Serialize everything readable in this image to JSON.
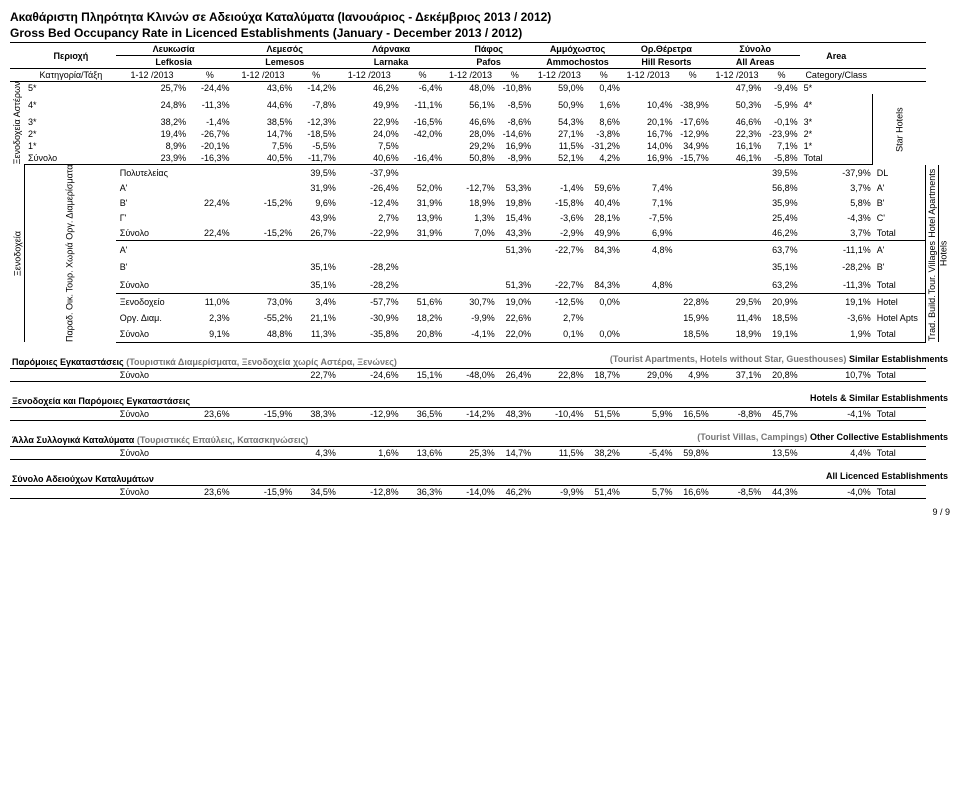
{
  "titleGr": "Ακαθάριστη Πληρότητα Κλινών σε Αδειούχα Καταλύματα (Ιανουάριος - Δεκέμβριος 2013 / 2012)",
  "titleEn": "Gross Bed Occupancy Rate in Licenced Establishments (January - December 2013 / 2012)",
  "regionGr": "Περιοχή",
  "areaEn": "Area",
  "cols": [
    {
      "gr": "Λευκωσία",
      "en": "Lefkosia"
    },
    {
      "gr": "Λεμεσός",
      "en": "Lemesos"
    },
    {
      "gr": "Λάρνακα",
      "en": "Larnaka"
    },
    {
      "gr": "Πάφος",
      "en": "Pafos"
    },
    {
      "gr": "Αμμόχωστος",
      "en": "Ammochostos"
    },
    {
      "gr": "Ορ.Θέρετρα",
      "en": "Hill Resorts"
    },
    {
      "gr": "Σύνολο",
      "en": "All Areas"
    }
  ],
  "catGr": "Κατηγορία/Τάξη",
  "catEn": "Category/Class",
  "p": "1-12 /2013",
  "pct": "%",
  "vXen": "Ξενοδοχεία",
  "vStar": "Ξενοδοχεία Αστέρων",
  "vDiam": "Οργ. Διαμερίσματα",
  "vTour": "Τουρ. Χωριά",
  "vParad": "Παραδ. Οικ.",
  "vStarR": "Star Hotels",
  "vAptR": "Hotel Apartments",
  "vHotelsR": "Hotels",
  "vVillR": "Tour. Villages",
  "vTradR": "Trad. Build.",
  "rows5": [
    "5*",
    "25,7%",
    "-24,4%",
    "43,6%",
    "-14,2%",
    "46,2%",
    "-6,4%",
    "48,0%",
    "-10,8%",
    "59,0%",
    "0,4%",
    "",
    "",
    "47,9%",
    "-9,4%",
    "5*"
  ],
  "rows4": [
    "4*",
    "24,8%",
    "-11,3%",
    "44,6%",
    "-7,8%",
    "49,9%",
    "-11,1%",
    "56,1%",
    "-8,5%",
    "50,9%",
    "1,6%",
    "10,4%",
    "-38,9%",
    "50,3%",
    "-5,9%",
    "4*"
  ],
  "rows3": [
    "3*",
    "38,2%",
    "-1,4%",
    "38,5%",
    "-12,3%",
    "22,9%",
    "-16,5%",
    "46,6%",
    "-8,6%",
    "54,3%",
    "8,6%",
    "20,1%",
    "-17,6%",
    "46,6%",
    "-0,1%",
    "3*"
  ],
  "rows2": [
    "2*",
    "19,4%",
    "-26,7%",
    "14,7%",
    "-18,5%",
    "24,0%",
    "-42,0%",
    "28,0%",
    "-14,6%",
    "27,1%",
    "-3,8%",
    "16,7%",
    "-12,9%",
    "22,3%",
    "-23,9%",
    "2*"
  ],
  "rows1": [
    "1*",
    "8,9%",
    "-20,1%",
    "7,5%",
    "-5,5%",
    "7,5%",
    "",
    "29,2%",
    "16,9%",
    "11,5%",
    "-31,2%",
    "14,0%",
    "34,9%",
    "16,1%",
    "7,1%",
    "1*"
  ],
  "rowsS": [
    "Σύνολο",
    "23,9%",
    "-16,3%",
    "40,5%",
    "-11,7%",
    "40,6%",
    "-16,4%",
    "50,8%",
    "-8,9%",
    "52,1%",
    "4,2%",
    "16,9%",
    "-15,7%",
    "46,1%",
    "-5,8%",
    "Total"
  ],
  "rowDL": [
    "Πολυτελείας",
    "",
    "",
    "39,5%",
    "-37,9%",
    "",
    "",
    "",
    "",
    "",
    "",
    "",
    "",
    "39,5%",
    "-37,9%",
    "DL"
  ],
  "rowA": [
    "Α'",
    "",
    "",
    "31,9%",
    "-26,4%",
    "52,0%",
    "-12,7%",
    "53,3%",
    "-1,4%",
    "59,6%",
    "7,4%",
    "",
    "",
    "56,8%",
    "3,7%",
    "A'"
  ],
  "rowB": [
    "Β'",
    "22,4%",
    "-15,2%",
    "9,6%",
    "-12,4%",
    "31,9%",
    "18,9%",
    "19,8%",
    "-15,8%",
    "40,4%",
    "7,1%",
    "",
    "",
    "35,9%",
    "5,8%",
    "B'"
  ],
  "rowG": [
    "Γ'",
    "",
    "",
    "43,9%",
    "2,7%",
    "13,9%",
    "1,3%",
    "15,4%",
    "-3,6%",
    "28,1%",
    "-7,5%",
    "",
    "",
    "25,4%",
    "-4,3%",
    "C'"
  ],
  "rowAS": [
    "Σύνολο",
    "22,4%",
    "-15,2%",
    "26,7%",
    "-22,9%",
    "31,9%",
    "7,0%",
    "43,3%",
    "-2,9%",
    "49,9%",
    "6,9%",
    "",
    "",
    "46,2%",
    "3,7%",
    "Total"
  ],
  "rowVA": [
    "Α'",
    "",
    "",
    "",
    "",
    "",
    "",
    "51,3%",
    "-22,7%",
    "84,3%",
    "4,8%",
    "",
    "",
    "63,7%",
    "-11,1%",
    "A'"
  ],
  "rowVB": [
    "Β'",
    "",
    "",
    "35,1%",
    "-28,2%",
    "",
    "",
    "",
    "",
    "",
    "",
    "",
    "",
    "35,1%",
    "-28,2%",
    "B'"
  ],
  "rowVS": [
    "Σύνολο",
    "",
    "",
    "35,1%",
    "-28,2%",
    "",
    "",
    "51,3%",
    "-22,7%",
    "84,3%",
    "4,8%",
    "",
    "",
    "63,2%",
    "-11,3%",
    "Total"
  ],
  "rowTX": [
    "Ξενοδοχείο",
    "11,0%",
    "73,0%",
    "3,4%",
    "-57,7%",
    "51,6%",
    "30,7%",
    "19,0%",
    "-12,5%",
    "0,0%",
    "",
    "22,8%",
    "29,5%",
    "20,9%",
    "19,1%",
    "Hotel"
  ],
  "rowTD": [
    "Οργ. Διαμ.",
    "2,3%",
    "-55,2%",
    "21,1%",
    "-30,9%",
    "18,2%",
    "-9,9%",
    "22,6%",
    "2,7%",
    "",
    "",
    "15,9%",
    "11,4%",
    "18,5%",
    "-3,6%",
    "Hotel Apts"
  ],
  "rowTS": [
    "Σύνολο",
    "9,1%",
    "48,8%",
    "11,3%",
    "-35,8%",
    "20,8%",
    "-4,1%",
    "22,0%",
    "0,1%",
    "0,0%",
    "",
    "18,5%",
    "18,9%",
    "19,1%",
    "1,9%",
    "Total"
  ],
  "simGr": "Παρόμοιες Εγκαταστάσεις",
  "simSub": "(Τουριστικά Διαμερίσματα, Ξενοδοχεία χωρίς Αστέρα, Ξενώνες)",
  "simEn": "(Tourist Apartments, Hotels without Star, Guesthouses)",
  "simEnB": "Similar Establishments",
  "rowSim": [
    "Σύνολο",
    "",
    "",
    "22,7%",
    "-24,6%",
    "15,1%",
    "-48,0%",
    "26,4%",
    "22,8%",
    "18,7%",
    "29,0%",
    "4,9%",
    "37,1%",
    "20,8%",
    "10,7%",
    "Total"
  ],
  "hseGr": "Ξενοδοχεία και Παρόμοιες Εγκαταστάσεις",
  "hseEn": "Hotels & Similar Establishments",
  "rowHSE": [
    "Σύνολο",
    "23,6%",
    "-15,9%",
    "38,3%",
    "-12,9%",
    "36,5%",
    "-14,2%",
    "48,3%",
    "-10,4%",
    "51,5%",
    "5,9%",
    "16,5%",
    "-8,8%",
    "45,7%",
    "-4,1%",
    "Total"
  ],
  "othGr": "Άλλα Συλλογικά Καταλύματα",
  "othSub": "(Τουριστικές Επαύλεις, Κατασκηνώσεις)",
  "othEn": "(Tourist Villas, Campings)",
  "othEnB": "Other Collective Establishments",
  "rowOth": [
    "Σύνολο",
    "",
    "",
    "4,3%",
    "1,6%",
    "13,6%",
    "25,3%",
    "14,7%",
    "11,5%",
    "38,2%",
    "-5,4%",
    "59,8%",
    "",
    "13,5%",
    "4,4%",
    "Total"
  ],
  "allGr": "Σύνολο Αδειούχων Καταλυμάτων",
  "allEn": "All Licenced Establishments",
  "rowAll": [
    "Σύνολο",
    "23,6%",
    "-15,9%",
    "34,5%",
    "-12,8%",
    "36,3%",
    "-14,0%",
    "46,2%",
    "-9,9%",
    "51,4%",
    "5,7%",
    "16,6%",
    "-8,5%",
    "44,3%",
    "-4,0%",
    "Total"
  ],
  "page": "9 / 9"
}
